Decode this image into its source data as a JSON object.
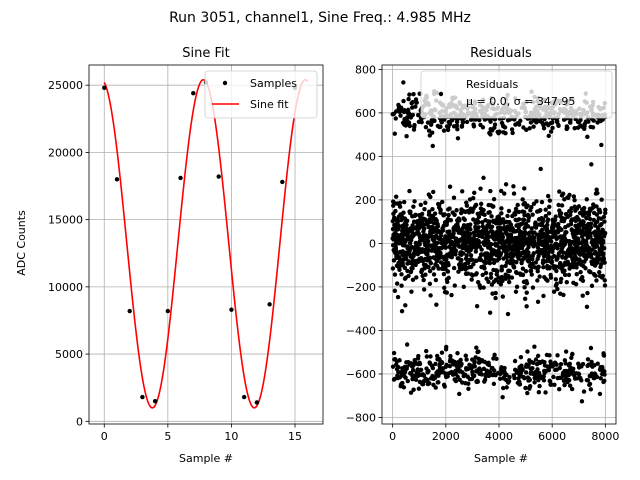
{
  "figure_title": "Run 3051, channel1, Sine Freq.: 4.985 MHz",
  "chart_data": [
    {
      "type": "scatter",
      "title": "Sine Fit",
      "xlabel": "Sample #",
      "ylabel": "ADC Counts",
      "xlim": [
        -1.2,
        17.2
      ],
      "ylim": [
        -200,
        26500
      ],
      "xticks": [
        0,
        5,
        10,
        15
      ],
      "yticks": [
        0,
        5000,
        10000,
        15000,
        20000,
        25000
      ],
      "grid": true,
      "legend_placement": "upper-right",
      "series": [
        {
          "name": "Samples",
          "style": "points",
          "color": "#000000",
          "x": [
            0,
            1,
            2,
            3,
            4,
            5,
            6,
            7,
            8,
            9,
            10,
            11,
            12,
            13,
            14,
            15
          ],
          "y": [
            24800,
            18000,
            8200,
            1800,
            1500,
            8200,
            18100,
            24400,
            25200,
            18200,
            8300,
            1800,
            1400,
            8700,
            17800,
            24800
          ]
        },
        {
          "name": "Sine fit",
          "style": "line",
          "color": "#ff0000",
          "model": {
            "offset": 13200,
            "amplitude": 12200,
            "period": 8.02,
            "phase": 1.75
          },
          "x_range": [
            0,
            16
          ]
        }
      ]
    },
    {
      "type": "scatter",
      "title": "Residuals",
      "xlabel": "Sample #",
      "ylabel": "",
      "xlim": [
        -400,
        8400
      ],
      "ylim": [
        -830,
        820
      ],
      "xticks": [
        0,
        2000,
        4000,
        6000,
        8000
      ],
      "yticks": [
        -800,
        -600,
        -400,
        -200,
        0,
        200,
        400,
        600,
        800
      ],
      "grid": true,
      "legend_placement": "upper-right",
      "legend_text": [
        "Residuals",
        "μ = 0.0, σ = 347.95"
      ],
      "series": [
        {
          "name": "Residuals",
          "style": "points",
          "color": "#000000",
          "count": 8000,
          "bands": [
            {
              "center": 590,
              "spread": 55,
              "fraction": 0.17
            },
            {
              "center": 0,
              "spread": 120,
              "fraction": 0.66
            },
            {
              "center": -590,
              "spread": 55,
              "fraction": 0.17
            }
          ]
        }
      ]
    }
  ]
}
